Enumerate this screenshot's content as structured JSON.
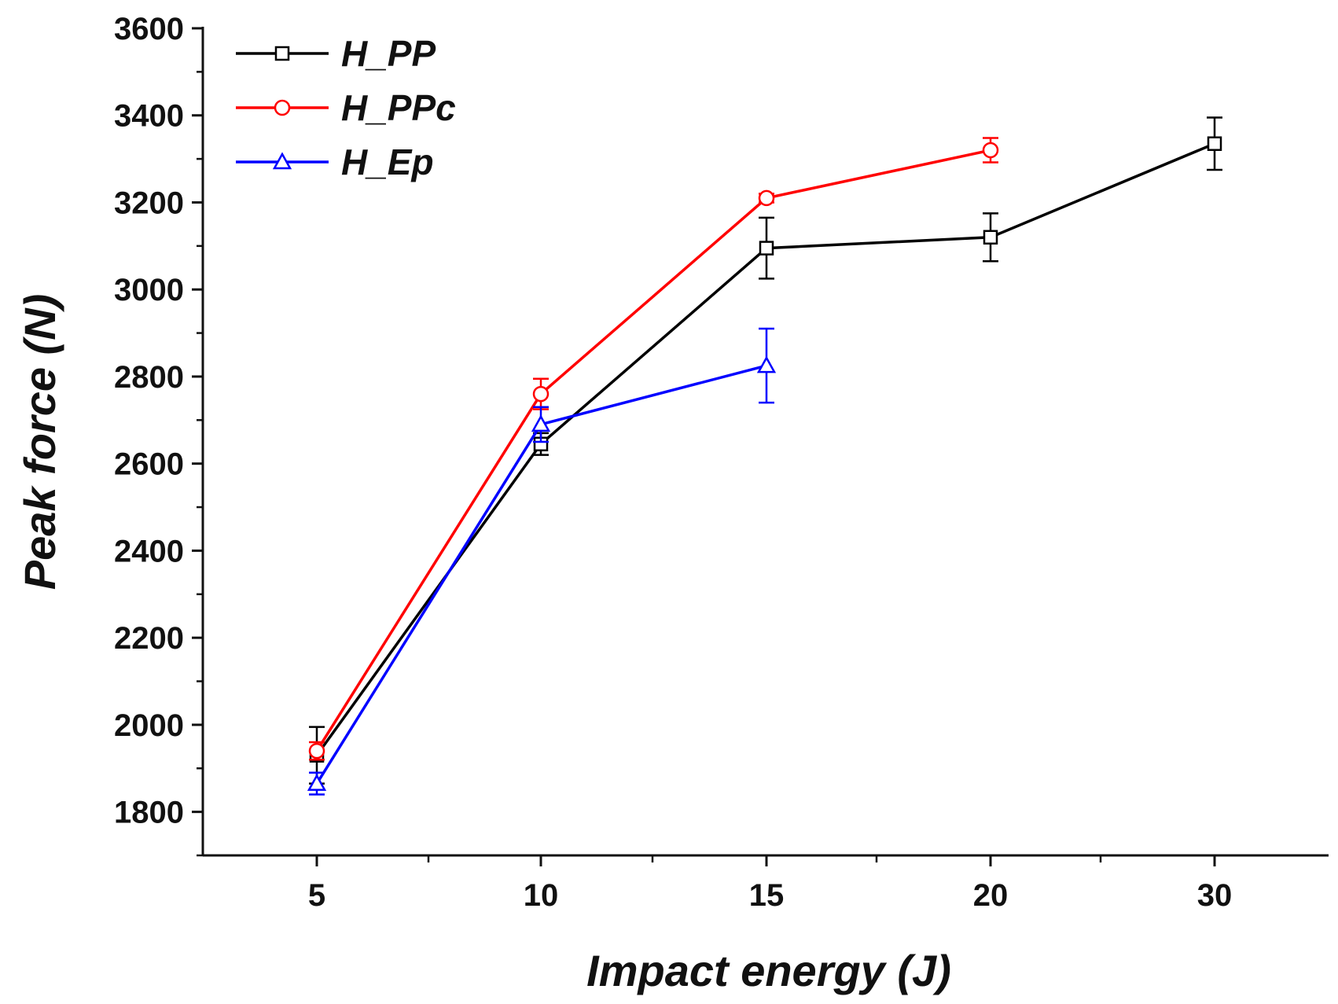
{
  "chart_data": {
    "type": "line",
    "title": "",
    "xlabel": "Impact energy (J)",
    "ylabel": "Peak force (N)",
    "categories": [
      "5",
      "10",
      "15",
      "20",
      "30"
    ],
    "ylim": [
      1700,
      3600
    ],
    "yticks": [
      1800,
      2000,
      2200,
      2400,
      2600,
      2800,
      3000,
      3200,
      3400,
      3600
    ],
    "grid": false,
    "legend_position": "top-left",
    "series": [
      {
        "name": "H_PP",
        "color": "#000000",
        "marker": "square",
        "values": [
          1930,
          2645,
          3095,
          3120,
          3335
        ],
        "errors": [
          65,
          25,
          70,
          55,
          60
        ]
      },
      {
        "name": "H_PPc",
        "color": "#ff0000",
        "marker": "circle",
        "values": [
          1940,
          2760,
          3210,
          3320,
          null
        ],
        "errors": [
          20,
          35,
          10,
          28,
          null
        ]
      },
      {
        "name": "H_Ep",
        "color": "#0000ff",
        "marker": "triangle",
        "values": [
          1865,
          2690,
          2825,
          null,
          null
        ],
        "errors": [
          25,
          40,
          85,
          null,
          null
        ]
      }
    ]
  }
}
